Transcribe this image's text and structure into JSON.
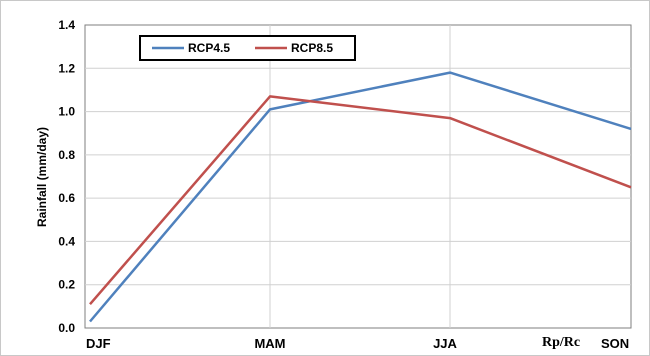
{
  "chart_data": {
    "type": "line",
    "categories": [
      "DJF",
      "MAM",
      "JJA",
      "SON"
    ],
    "series": [
      {
        "name": "RCP4.5",
        "color": "#4f81bd",
        "values": [
          0.03,
          1.01,
          1.18,
          0.92
        ]
      },
      {
        "name": "RCP8.5",
        "color": "#c0504d",
        "values": [
          0.11,
          1.07,
          0.97,
          0.65
        ]
      }
    ],
    "ylabel": "Rainfall (mm/day)",
    "xlabel": "",
    "ylim": [
      0.0,
      1.4
    ],
    "yticks": [
      "0.0",
      "0.2",
      "0.4",
      "0.6",
      "0.8",
      "1.0",
      "1.2",
      "1.4"
    ],
    "grid": true,
    "legend_position": "top-left",
    "annotation": "Rp/Rc"
  }
}
